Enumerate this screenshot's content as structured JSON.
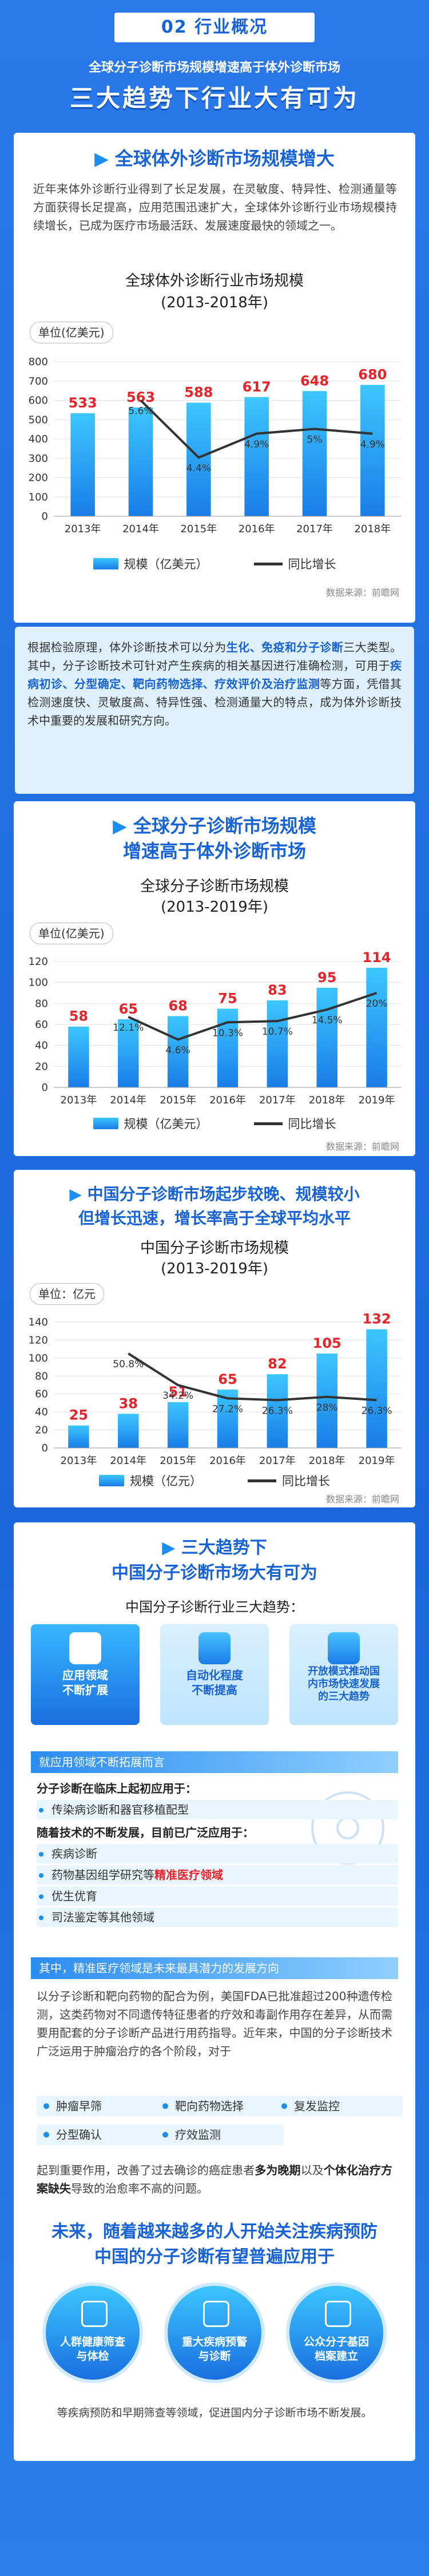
{
  "header": {
    "section_badge": "02 行业概况",
    "subtitle": "全球分子诊断市场规模增速高于体外诊断市场",
    "title": "三大趋势下行业大有可为"
  },
  "sec1": {
    "title": "全球体外诊断市场规模增大",
    "paragraph": "近年来体外诊断行业得到了长足发展，在灵敏度、特异性、检测通量等方面获得长足提高，应用范围迅速扩大，全球体外诊断行业市场规模持续增长，已成为医疗市场最活跃、发展速度最快的领域之一。",
    "chart_title_1": "全球体外诊断行业市场规模",
    "chart_title_2": "(2013-2018年)",
    "unit": "单位(亿美元)",
    "legend_bar": "规模（亿美元）",
    "legend_line": "同比增长",
    "source": "数据来源：前瞻网"
  },
  "note": {
    "p1": "根据检验原理，体外诊断技术可以分为",
    "h1": "生化、免疫和分子诊断",
    "p2": "三大类型。其中，分子诊断技术可针对产生疾病的相关基因进行准确检测，可用于",
    "h2": "疾病初诊、分型确定、靶向药物选择、疗效评价及治疗监测",
    "p3": "等方面，凭借其检测速度快、灵敏度高、特异性强、检测通量大的特点，成为体外诊断技术中重要的发展和研究方向。"
  },
  "sec2": {
    "title_line1": "全球分子诊断市场规模",
    "title_line2": "增速高于体外诊断市场",
    "chart_title_1": "全球分子诊断市场规模",
    "chart_title_2": "(2013-2019年)",
    "unit": "单位(亿美元)",
    "legend_bar": "规模（亿美元）",
    "legend_line": "同比增长",
    "source": "数据来源：前瞻网"
  },
  "sec3": {
    "title_line1": "中国分子诊断市场起步较晚、规模较小",
    "title_line2": "但增长迅速，增长率高于全球平均水平",
    "chart_title_1": "中国分子诊断市场规模",
    "chart_title_2": "(2013-2019年)",
    "unit": "单位：亿元",
    "legend_bar": "规模（亿元）",
    "legend_line": "同比增长",
    "source": "数据来源：前瞻网"
  },
  "sec4": {
    "title_line1": "三大趋势下",
    "title_line2": "中国分子诊断市场大有可为",
    "subtitle": "中国分子诊断行业三大趋势：",
    "cards": [
      "应用领域\n不断扩展",
      "自动化程度\n不断提高",
      "开放模式推动国\n内市场快速发展\n的三大趋势"
    ],
    "bar1": "就应用领域不断拓展而言",
    "list1_head": "分子诊断在临床上起初应用于：",
    "list1_item": "传染病诊断和器官移植配型",
    "list2_head": "随着技术的不断发展，目前已广泛应用于：",
    "list2_items": [
      "疾病诊断",
      "药物基因组学研究等",
      "优生优育",
      "司法鉴定等其他领域"
    ],
    "list2_red": "精准医疗领域",
    "bar2": "其中，精准医疗领域是未来最具潜力的发展方向",
    "para_a": "以分子诊断和靶向药物的配合为例，美国FDA已批准超过200种遗传检测，这类药物对不同遗传特征患者的疗效和毒副作用存在差异，从而需要用配套的分子诊断产品进行用药指导。近年来，中国的分子诊断技术广泛运用于肿瘤治疗的各个阶段，对于",
    "chips": [
      "肿瘤早筛",
      "靶向药物选择",
      "复发监控",
      "分型确认",
      "疗效监测"
    ],
    "para_b1": "起到重要作用，改善了过去确诊的癌症患者",
    "para_b_h1": "多为晚期",
    "para_b2": "以及",
    "para_b_h2": "个体化治疗方案缺失",
    "para_b3": "导致的治愈率不高的问题。",
    "future_line1": "未来，随着越来越多的人开始关注疾病预防",
    "future_line2": "中国的分子诊断有望普遍应用于",
    "circles": [
      "人群健康筛查\n与体检",
      "重大疾病预警\n与诊断",
      "公众分子基因\n档案建立"
    ],
    "closing": "等疾病预防和早期筛查等领域，促进国内分子诊断市场不断发展。"
  },
  "chart_data": [
    {
      "type": "bar",
      "title": "全球体外诊断行业市场规模",
      "categories": [
        "2013年",
        "2014年",
        "2015年",
        "2016年",
        "2017年",
        "2018年"
      ],
      "series": [
        {
          "name": "规模（亿美元）",
          "values": [
            533,
            563,
            588,
            617,
            648,
            680
          ]
        },
        {
          "name": "同比增长",
          "type": "line",
          "values": [
            null,
            5.6,
            4.4,
            4.9,
            5.0,
            4.9
          ],
          "labels": [
            "",
            "5.6%",
            "4.4%",
            "4.9%",
            "5%",
            "4.9%"
          ]
        }
      ],
      "ylim": [
        0,
        800
      ],
      "yticks": [
        0,
        100,
        200,
        300,
        400,
        500,
        600,
        700,
        800
      ],
      "ylabel": "单位(亿美元)",
      "colors": {
        "bar_top": "#3cc6ff",
        "bar_bottom": "#1a7de8",
        "label": "#e8242b",
        "line": "#333333"
      }
    },
    {
      "type": "bar",
      "title": "全球分子诊断市场规模",
      "categories": [
        "2013年",
        "2014年",
        "2015年",
        "2016年",
        "2017年",
        "2018年",
        "2019年"
      ],
      "series": [
        {
          "name": "规模（亿美元）",
          "values": [
            58,
            65,
            68,
            75,
            83,
            95,
            114
          ]
        },
        {
          "name": "同比增长",
          "type": "line",
          "values": [
            null,
            12.1,
            4.6,
            10.3,
            10.7,
            14.5,
            20
          ],
          "labels": [
            "",
            "12.1%",
            "4.6%",
            "10.3%",
            "10.7%",
            "14.5%",
            "20%"
          ]
        }
      ],
      "ylim": [
        0,
        120
      ],
      "yticks": [
        0,
        20,
        40,
        60,
        80,
        100,
        120
      ],
      "ylabel": "单位(亿美元)",
      "colors": {
        "bar_top": "#3cc6ff",
        "bar_bottom": "#1a7de8",
        "label": "#e8242b",
        "line": "#333333"
      }
    },
    {
      "type": "bar",
      "title": "中国分子诊断市场规模",
      "categories": [
        "2013年",
        "2014年",
        "2015年",
        "2016年",
        "2017年",
        "2018年",
        "2019年"
      ],
      "series": [
        {
          "name": "规模（亿元）",
          "values": [
            25,
            38,
            51,
            65,
            82,
            105,
            132
          ]
        },
        {
          "name": "同比增长",
          "type": "line",
          "values": [
            null,
            50.8,
            34.2,
            27.2,
            26.3,
            28,
            26.3
          ],
          "labels": [
            "",
            "50.8%",
            "34.2%",
            "27.2%",
            "26.3%",
            "28%",
            "26.3%"
          ]
        }
      ],
      "ylim": [
        0,
        140
      ],
      "yticks": [
        0,
        20,
        40,
        60,
        80,
        100,
        120,
        140
      ],
      "ylabel": "单位：亿元",
      "colors": {
        "bar_top": "#3cc6ff",
        "bar_bottom": "#1a7de8",
        "label": "#e8242b",
        "line": "#333333"
      }
    }
  ]
}
